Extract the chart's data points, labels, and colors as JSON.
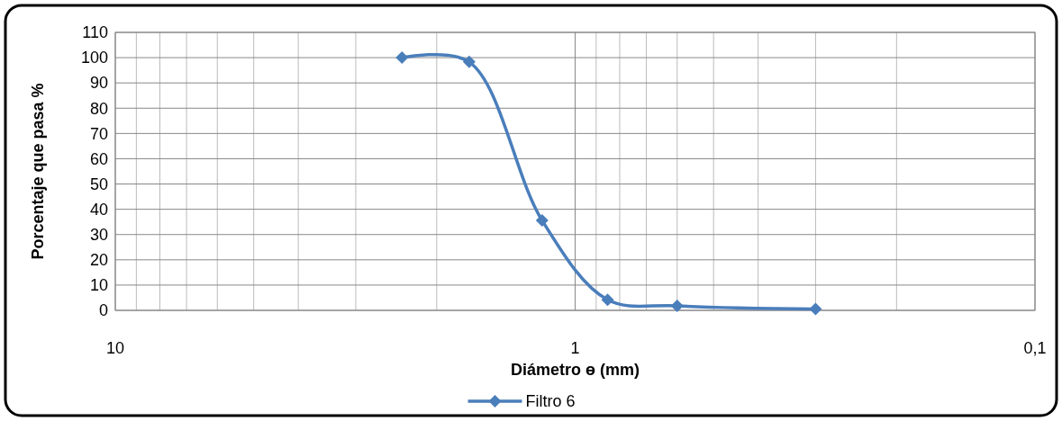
{
  "chart_data": {
    "type": "line",
    "xlabel": "Diámetro ɵ (mm)",
    "ylabel": "Porcentaje que pasa %",
    "log": "x",
    "xlim": [
      10,
      0.1
    ],
    "ylim": [
      0,
      110
    ],
    "xticks": [
      {
        "value": 10,
        "label": "10"
      },
      {
        "value": 9,
        "label": null
      },
      {
        "value": 8,
        "label": null
      },
      {
        "value": 7,
        "label": null
      },
      {
        "value": 6,
        "label": null
      },
      {
        "value": 5,
        "label": null
      },
      {
        "value": 4,
        "label": null
      },
      {
        "value": 3,
        "label": null
      },
      {
        "value": 2,
        "label": null
      },
      {
        "value": 1,
        "label": "1"
      },
      {
        "value": 0.9,
        "label": null
      },
      {
        "value": 0.8,
        "label": null
      },
      {
        "value": 0.7,
        "label": null
      },
      {
        "value": 0.6,
        "label": null
      },
      {
        "value": 0.5,
        "label": null
      },
      {
        "value": 0.4,
        "label": null
      },
      {
        "value": 0.3,
        "label": null
      },
      {
        "value": 0.2,
        "label": null
      },
      {
        "value": 0.1,
        "label": "0,1"
      }
    ],
    "yticks": [
      0,
      10,
      20,
      30,
      40,
      50,
      60,
      70,
      80,
      90,
      100,
      110
    ],
    "grid": true,
    "legend": "bottom",
    "marker": "diamond",
    "line_style": "solid",
    "series": [
      {
        "name": "Filtro 6",
        "color": "#4a7ebb",
        "x": [
          2.38,
          1.7,
          1.18,
          0.85,
          0.6,
          0.3
        ],
        "values": [
          100,
          98.3,
          35.6,
          4.2,
          1.8,
          0.5
        ]
      }
    ]
  }
}
